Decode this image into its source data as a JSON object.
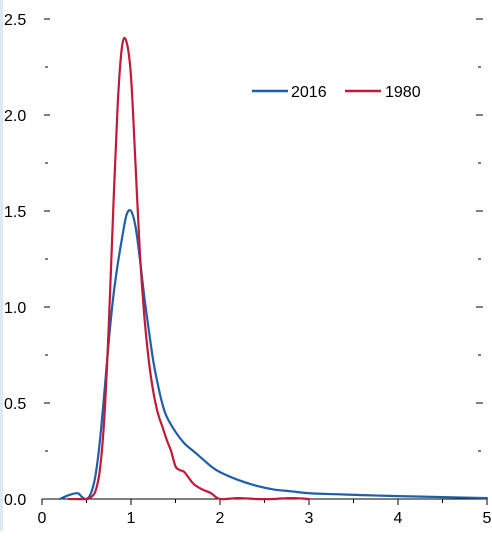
{
  "chart_data": {
    "type": "line",
    "title": "",
    "xlabel": "",
    "ylabel": "",
    "xlim": [
      0,
      5
    ],
    "ylim": [
      0,
      2.5
    ],
    "x_ticks": [
      "0",
      "1",
      "2",
      "3",
      "4",
      "5"
    ],
    "y_ticks": [
      "0.0",
      "0.5",
      "1.0",
      "1.5",
      "2.0",
      "2.5"
    ],
    "grid": false,
    "legend_position": "top-right",
    "series": [
      {
        "name": "2016",
        "color": "#1f5fa8",
        "x": [
          0.2,
          0.3,
          0.4,
          0.45,
          0.5,
          0.55,
          0.6,
          0.65,
          0.7,
          0.75,
          0.8,
          0.85,
          0.9,
          0.95,
          1.0,
          1.05,
          1.1,
          1.15,
          1.2,
          1.25,
          1.3,
          1.35,
          1.4,
          1.5,
          1.6,
          1.7,
          1.8,
          1.9,
          2.0,
          2.2,
          2.4,
          2.6,
          2.8,
          3.0,
          3.3,
          3.6,
          4.0,
          4.5,
          5.0
        ],
        "y": [
          0.0,
          0.02,
          0.03,
          0.01,
          0.0,
          0.03,
          0.12,
          0.3,
          0.55,
          0.82,
          1.05,
          1.22,
          1.36,
          1.48,
          1.5,
          1.42,
          1.25,
          1.05,
          0.88,
          0.72,
          0.6,
          0.5,
          0.43,
          0.35,
          0.29,
          0.25,
          0.21,
          0.17,
          0.14,
          0.1,
          0.07,
          0.05,
          0.04,
          0.03,
          0.025,
          0.02,
          0.015,
          0.01,
          0.005
        ]
      },
      {
        "name": "1980",
        "color": "#c0193a",
        "x": [
          0.3,
          0.5,
          0.55,
          0.6,
          0.65,
          0.7,
          0.75,
          0.8,
          0.85,
          0.9,
          0.95,
          1.0,
          1.05,
          1.1,
          1.15,
          1.2,
          1.25,
          1.3,
          1.35,
          1.4,
          1.45,
          1.5,
          1.55,
          1.6,
          1.7,
          1.8,
          1.9,
          2.0,
          2.2,
          2.4,
          2.6,
          2.8,
          3.0
        ],
        "y": [
          0.0,
          0.0,
          0.01,
          0.04,
          0.15,
          0.42,
          0.9,
          1.5,
          2.05,
          2.36,
          2.38,
          2.2,
          1.75,
          1.28,
          0.95,
          0.72,
          0.56,
          0.45,
          0.38,
          0.31,
          0.25,
          0.17,
          0.15,
          0.14,
          0.08,
          0.05,
          0.03,
          0.0,
          0.005,
          0.0,
          0.0,
          0.005,
          0.0
        ]
      }
    ]
  }
}
